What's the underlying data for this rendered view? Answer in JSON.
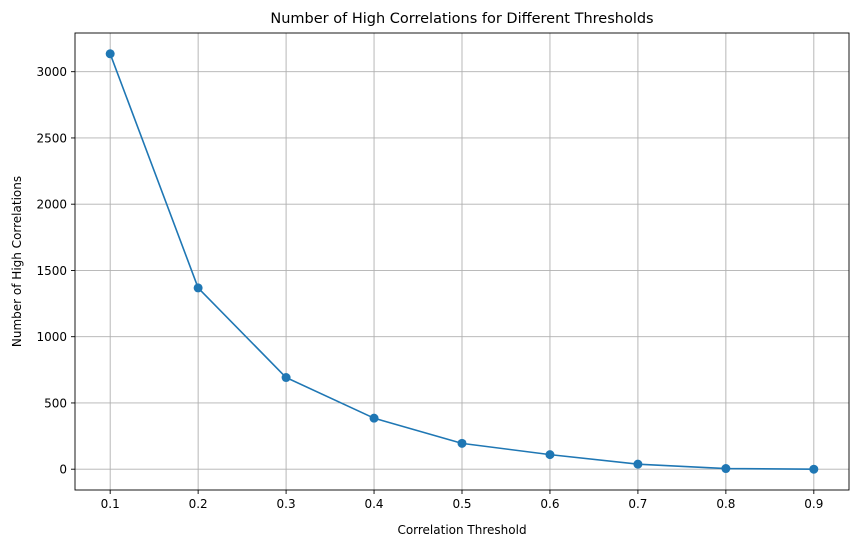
{
  "chart_data": {
    "type": "line",
    "title": "Number of High Correlations for Different Thresholds",
    "xlabel": "Correlation Threshold",
    "ylabel": "Number of High Correlations",
    "x": [
      0.1,
      0.2,
      0.3,
      0.4,
      0.5,
      0.6,
      0.7,
      0.8,
      0.9
    ],
    "series": [
      {
        "values": [
          3135,
          1368,
          692,
          385,
          195,
          110,
          38,
          5,
          0
        ],
        "color": "#1f77b4",
        "marker": "circle"
      }
    ],
    "xticks": [
      "0.1",
      "0.2",
      "0.3",
      "0.4",
      "0.5",
      "0.6",
      "0.7",
      "0.8",
      "0.9"
    ],
    "yticks": [
      "0",
      "500",
      "1000",
      "1500",
      "2000",
      "2500",
      "3000"
    ],
    "xlim": [
      0.06,
      0.94
    ],
    "ylim": [
      -157,
      3292
    ],
    "grid": true,
    "legend": false
  }
}
